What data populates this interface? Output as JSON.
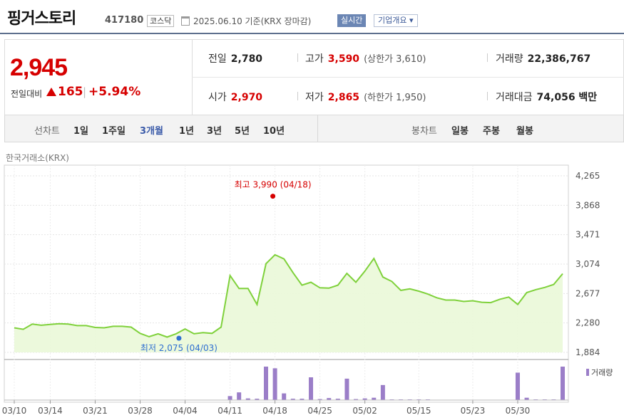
{
  "header": {
    "stock_name": "핑거스토리",
    "stock_code": "417180",
    "market": "코스닥",
    "date_basis": "2025.06.10  기준(KRX 장마감)",
    "realtime_button": "실시간",
    "company_button": "기업개요 ▾"
  },
  "summary": {
    "current_price": "2,945",
    "change_label": "전일대비",
    "change_value": "165",
    "change_pct": "+5.94%",
    "prev_close_label": "전일",
    "prev_close": "2,780",
    "high_label": "고가",
    "high": "3,590",
    "upper_limit": "(상한가 3,610)",
    "volume_label": "거래량",
    "volume": "22,386,767",
    "open_label": "시가",
    "open": "2,970",
    "low_label": "저가",
    "low": "2,865",
    "lower_limit": "(하한가 1,950)",
    "amount_label": "거래대금",
    "amount": "74,056 백만"
  },
  "period_tabs": {
    "label": "선차트",
    "items": [
      "1일",
      "1주일",
      "3개월",
      "1년",
      "3년",
      "5년",
      "10년"
    ],
    "active": "3개월",
    "candle_label": "봉차트",
    "candle_items": [
      "일봉",
      "주봉",
      "월봉"
    ]
  },
  "exchange_label": "한국거래소(KRX)",
  "colors": {
    "up": "#d60000",
    "line": "#7fd13b",
    "fill": "#eaf8d8",
    "volume": "#9b7ec8",
    "low_marker": "#2f6fd1"
  },
  "chart_data": {
    "type": "area",
    "y_ticks": [
      "4,265",
      "3,868",
      "3,471",
      "3,074",
      "2,677",
      "2,280",
      "1,884"
    ],
    "ylim": [
      1884,
      4265
    ],
    "x_tick_labels": [
      "03/10",
      "03/14",
      "03/21",
      "03/28",
      "04/04",
      "04/11",
      "04/18",
      "04/25",
      "05/02",
      "05/15",
      "05/23",
      "05/30"
    ],
    "annotations": {
      "high": "최고 3,990 (04/18)",
      "low": "최저 2,075 (04/03)",
      "high_value": 3990,
      "low_value": 2075
    },
    "volume_legend": "거래량",
    "price": [
      2215,
      2195,
      2265,
      2250,
      2260,
      2270,
      2265,
      2245,
      2245,
      2220,
      2215,
      2235,
      2235,
      2225,
      2140,
      2095,
      2135,
      2090,
      2135,
      2200,
      2135,
      2150,
      2140,
      2225,
      2920,
      2745,
      2745,
      2530,
      3080,
      3200,
      3145,
      2960,
      2790,
      2830,
      2755,
      2750,
      2790,
      2950,
      2830,
      2980,
      3150,
      2900,
      2840,
      2720,
      2740,
      2710,
      2670,
      2620,
      2590,
      2590,
      2570,
      2580,
      2560,
      2555,
      2600,
      2630,
      2530,
      2690,
      2730,
      2760,
      2800,
      2945
    ],
    "volume": [
      0,
      0,
      0,
      0,
      0,
      0,
      0,
      0,
      0,
      0,
      0,
      0,
      0,
      0,
      0,
      0,
      0,
      0,
      0,
      0,
      0,
      0,
      0,
      0,
      12,
      23,
      5,
      4,
      100,
      95,
      20,
      4,
      4,
      68,
      3,
      6,
      4,
      64,
      3,
      5,
      7,
      45,
      2,
      2,
      2,
      2,
      2,
      0,
      0,
      0,
      0,
      0,
      0,
      0,
      0,
      0,
      82,
      7,
      2,
      2,
      2,
      100
    ]
  }
}
